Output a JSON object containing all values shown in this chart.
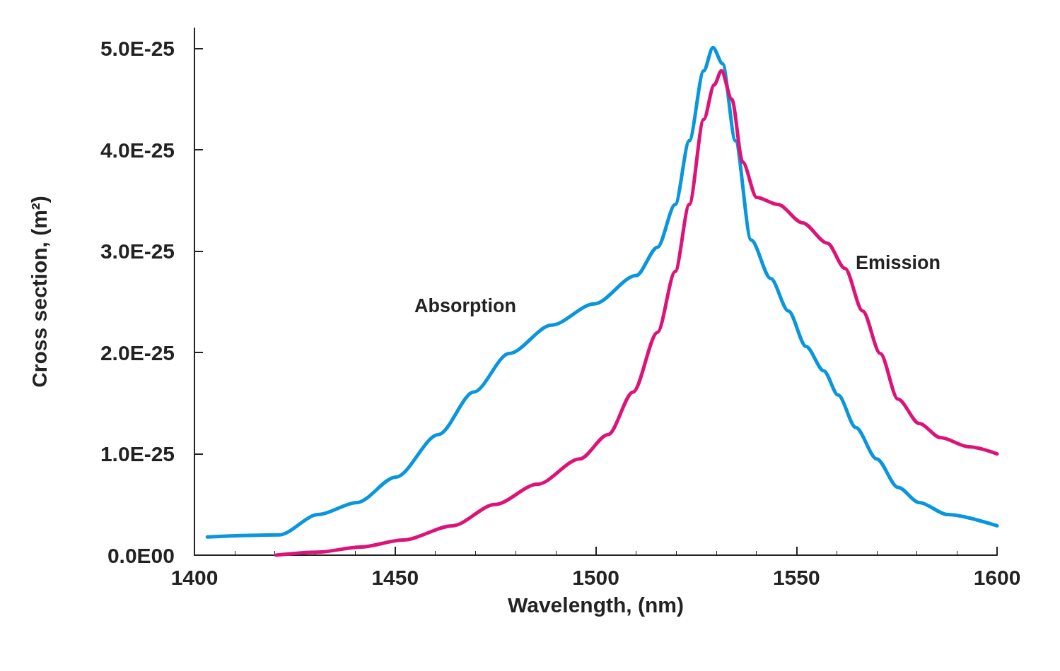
{
  "chart_data": {
    "type": "line",
    "xlabel": "Wavelength, (nm)",
    "ylabel": "Cross section, (m²)",
    "xlim": [
      1400,
      1600
    ],
    "xticks": [
      1400,
      1450,
      1500,
      1550,
      1600
    ],
    "ylim": [
      0,
      5.2e-25
    ],
    "yticks": [
      {
        "value": 0,
        "label": "0.0E00"
      },
      {
        "value": 1e-25,
        "label": "1.0E-25"
      },
      {
        "value": 2e-25,
        "label": "2.0E-25"
      },
      {
        "value": 3e-25,
        "label": "3.0E-25"
      },
      {
        "value": 4e-25,
        "label": "4.0E-25"
      },
      {
        "value": 5e-25,
        "label": "5.0E-25"
      }
    ],
    "grid": false,
    "legend": false,
    "marker": "none",
    "line_style": "solid",
    "series": [
      {
        "name": "Absorption",
        "color": "#0a96dc",
        "x": [
          1403.2,
          1421.1,
          1430.8,
          1440.5,
          1450.2,
          1460.8,
          1469.6,
          1478.4,
          1489,
          1499.6,
          1510.1,
          1515.4,
          1519.8,
          1523.3,
          1526.9,
          1529.2,
          1531.6,
          1534.8,
          1538.7,
          1543.6,
          1548,
          1552.4,
          1556.8,
          1560.4,
          1564.8,
          1570,
          1575.3,
          1580.6,
          1587.7,
          1600
        ],
        "values": [
          1.8e-26,
          2e-26,
          4e-26,
          5.2e-26,
          7.7e-26,
          1.19e-25,
          1.61e-25,
          1.99e-25,
          2.27e-25,
          2.48e-25,
          2.76e-25,
          3.04e-25,
          3.46e-25,
          4.09e-25,
          4.78e-25,
          5.01e-25,
          4.85e-25,
          4.09e-25,
          3.11e-25,
          2.73e-25,
          2.41e-25,
          2.06e-25,
          1.82e-25,
          1.58e-25,
          1.26e-25,
          9.5e-26,
          6.7e-26,
          5.2e-26,
          4e-26,
          2.9e-26
        ]
      },
      {
        "name": "Emission",
        "color": "#dc1478",
        "x": [
          1420.3,
          1430.8,
          1441.4,
          1452,
          1464.3,
          1474.9,
          1485.5,
          1496,
          1503.1,
          1509.3,
          1515.4,
          1519.8,
          1523.3,
          1526.9,
          1529.5,
          1531.3,
          1533.9,
          1536.6,
          1540.1,
          1545.4,
          1551.5,
          1557.7,
          1562.1,
          1566.5,
          1570.9,
          1575.3,
          1580.6,
          1585.9,
          1592.9,
          1600
        ],
        "values": [
          0,
          3e-27,
          8e-27,
          1.5e-26,
          2.9e-26,
          5e-26,
          7e-26,
          9.5e-26,
          1.19e-25,
          1.61e-25,
          2.2e-25,
          2.8e-25,
          3.46e-25,
          4.3e-25,
          4.64e-25,
          4.78e-25,
          4.5e-25,
          3.88e-25,
          3.53e-25,
          3.46e-25,
          3.28e-25,
          3.08e-25,
          2.83e-25,
          2.41e-25,
          1.99e-25,
          1.54e-25,
          1.3e-25,
          1.16e-25,
          1.07e-25,
          1e-25
        ]
      }
    ]
  }
}
